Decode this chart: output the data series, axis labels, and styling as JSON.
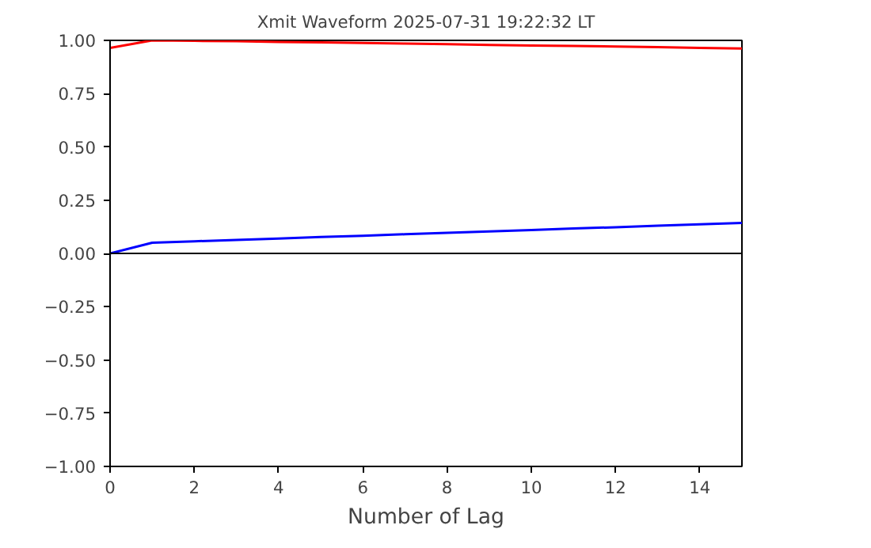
{
  "chart_data": {
    "type": "line",
    "title": "Xmit Waveform 2025-07-31 19:22:32 LT",
    "xlabel": "Number of Lag",
    "x": [
      0,
      1,
      2,
      3,
      4,
      5,
      6,
      7,
      8,
      9,
      10,
      11,
      12,
      13,
      14,
      15
    ],
    "series": [
      {
        "color": "#ff0000",
        "values": [
          0.965,
          1.0,
          0.998,
          0.996,
          0.993,
          0.991,
          0.988,
          0.985,
          0.982,
          0.979,
          0.976,
          0.974,
          0.971,
          0.968,
          0.965,
          0.962
        ]
      },
      {
        "color": "#0000ff",
        "values": [
          0.0,
          0.05,
          0.057,
          0.063,
          0.07,
          0.077,
          0.083,
          0.09,
          0.097,
          0.103,
          0.11,
          0.117,
          0.123,
          0.13,
          0.137,
          0.143
        ]
      }
    ],
    "xlim": [
      0,
      15
    ],
    "xticks": [
      0,
      2,
      4,
      6,
      8,
      10,
      12,
      14
    ],
    "ylim": [
      -1.0,
      1.0
    ],
    "yticks": [
      {
        "value": -1.0,
        "label": "−1.00"
      },
      {
        "value": -0.75,
        "label": "−0.75"
      },
      {
        "value": -0.5,
        "label": "−0.50"
      },
      {
        "value": -0.25,
        "label": "−0.25"
      },
      {
        "value": 0,
        "label": "0.00"
      },
      {
        "value": 0.25,
        "label": "0.25"
      },
      {
        "value": 0.5,
        "label": "0.50"
      },
      {
        "value": 0.75,
        "label": "0.75"
      },
      {
        "value": 1.0,
        "label": "1.00"
      }
    ],
    "ref_lines": [
      {
        "axis": "y",
        "value": 0,
        "color": "#000000"
      }
    ],
    "grid": false,
    "marker": "none",
    "line_style": "solid"
  }
}
